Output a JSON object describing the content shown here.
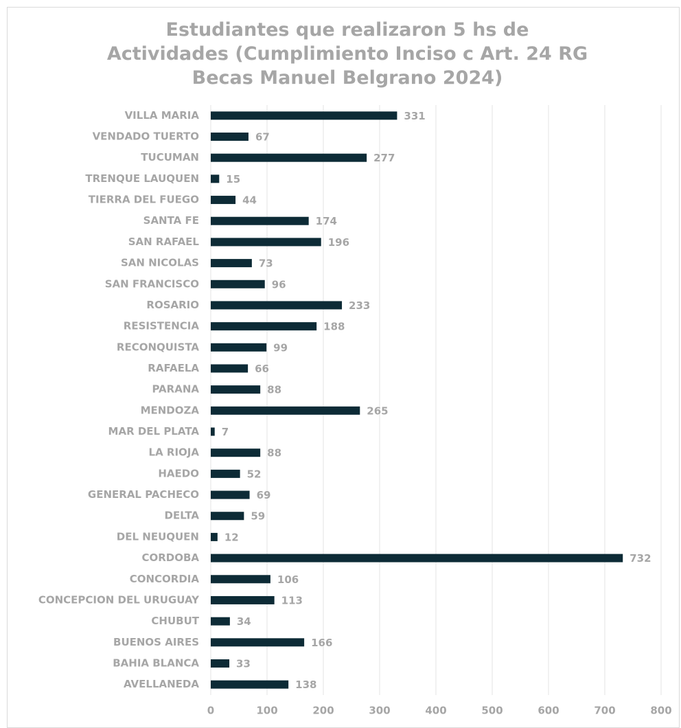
{
  "chart_data": {
    "type": "bar",
    "orientation": "horizontal",
    "title": "Estudiantes que realizaron 5 hs de Actividades (Cumplimiento Inciso c Art. 24 RG Becas Manuel Belgrano 2024)",
    "categories": [
      "VILLA MARIA",
      "VENDADO TUERTO",
      "TUCUMAN",
      "TRENQUE LAUQUEN",
      "TIERRA DEL FUEGO",
      "SANTA FE",
      "SAN RAFAEL",
      "SAN NICOLAS",
      "SAN FRANCISCO",
      "ROSARIO",
      "RESISTENCIA",
      "RECONQUISTA",
      "RAFAELA",
      "PARANA",
      "MENDOZA",
      "MAR DEL PLATA",
      "LA RIOJA",
      "HAEDO",
      "GENERAL PACHECO",
      "DELTA",
      "DEL NEUQUEN",
      "CORDOBA",
      "CONCORDIA",
      "CONCEPCION DEL URUGUAY",
      "CHUBUT",
      "BUENOS AIRES",
      "BAHIA BLANCA",
      "AVELLANEDA"
    ],
    "values": [
      331,
      67,
      277,
      15,
      44,
      174,
      196,
      73,
      96,
      233,
      188,
      99,
      66,
      88,
      265,
      7,
      88,
      52,
      69,
      59,
      12,
      732,
      106,
      113,
      34,
      166,
      33,
      138
    ],
    "color": "#0d2b36",
    "xlim": [
      0,
      800
    ],
    "xticks": [
      0,
      100,
      200,
      300,
      400,
      500,
      600,
      700,
      800
    ],
    "grid": true
  }
}
